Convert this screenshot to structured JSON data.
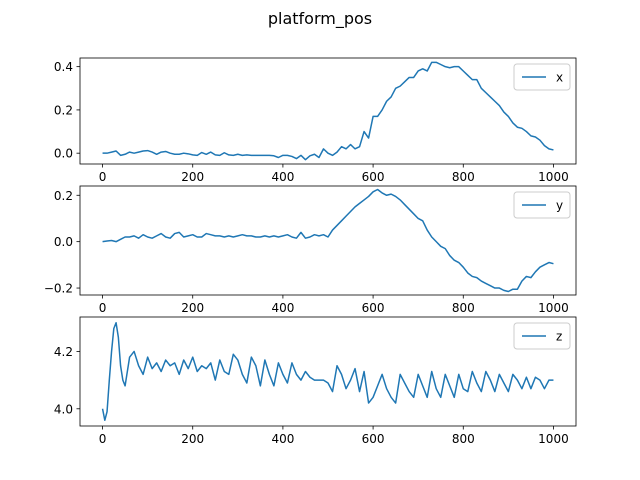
{
  "figure_title": "platform_pos",
  "colors": {
    "line": "#1f77b4",
    "axis": "#000000",
    "legend_border": "#cccccc"
  },
  "chart_data": [
    {
      "type": "line",
      "xlim": [
        -50,
        1050
      ],
      "ylim": [
        -0.05,
        0.44
      ],
      "xticks": [
        0,
        200,
        400,
        600,
        800,
        1000
      ],
      "xtick_labels": [
        "0",
        "200",
        "400",
        "600",
        "800",
        "1000"
      ],
      "yticks": [
        0.0,
        0.2,
        0.4
      ],
      "ytick_labels": [
        "0.0",
        "0.2",
        "0.4"
      ],
      "legend": "top-right",
      "series": [
        {
          "name": "x",
          "x": [
            0,
            10,
            20,
            30,
            40,
            50,
            60,
            70,
            80,
            90,
            100,
            110,
            120,
            130,
            140,
            150,
            160,
            170,
            180,
            190,
            200,
            210,
            220,
            230,
            240,
            250,
            260,
            270,
            280,
            290,
            300,
            310,
            320,
            330,
            340,
            350,
            360,
            370,
            380,
            390,
            400,
            410,
            420,
            430,
            440,
            450,
            460,
            470,
            480,
            490,
            500,
            510,
            520,
            530,
            540,
            550,
            560,
            570,
            580,
            590,
            600,
            610,
            620,
            630,
            640,
            650,
            660,
            670,
            680,
            690,
            700,
            710,
            720,
            730,
            740,
            750,
            760,
            770,
            780,
            790,
            800,
            810,
            820,
            830,
            840,
            850,
            860,
            870,
            880,
            890,
            900,
            910,
            920,
            930,
            940,
            950,
            960,
            970,
            980,
            990,
            1000
          ],
          "y": [
            0.0,
            0.0,
            0.005,
            0.01,
            -0.01,
            -0.005,
            0.005,
            0.0,
            0.005,
            0.01,
            0.012,
            0.005,
            -0.005,
            0.005,
            0.008,
            0.0,
            -0.005,
            -0.005,
            0.0,
            -0.003,
            -0.008,
            -0.01,
            0.003,
            -0.005,
            0.005,
            -0.008,
            -0.01,
            0.002,
            -0.008,
            -0.01,
            -0.005,
            -0.01,
            -0.008,
            -0.01,
            -0.01,
            -0.01,
            -0.01,
            -0.01,
            -0.012,
            -0.02,
            -0.01,
            -0.01,
            -0.015,
            -0.025,
            -0.01,
            -0.03,
            -0.012,
            -0.005,
            -0.02,
            0.02,
            0.0,
            -0.01,
            0.005,
            0.03,
            0.02,
            0.04,
            0.02,
            0.03,
            0.1,
            0.07,
            0.17,
            0.17,
            0.2,
            0.24,
            0.26,
            0.3,
            0.31,
            0.33,
            0.35,
            0.35,
            0.38,
            0.39,
            0.38,
            0.42,
            0.42,
            0.41,
            0.4,
            0.395,
            0.4,
            0.4,
            0.38,
            0.36,
            0.34,
            0.34,
            0.3,
            0.28,
            0.26,
            0.24,
            0.22,
            0.19,
            0.17,
            0.14,
            0.12,
            0.115,
            0.1,
            0.08,
            0.075,
            0.06,
            0.035,
            0.02,
            0.015
          ]
        }
      ]
    },
    {
      "type": "line",
      "xlim": [
        -50,
        1050
      ],
      "ylim": [
        -0.23,
        0.24
      ],
      "xticks": [
        0,
        200,
        400,
        600,
        800,
        1000
      ],
      "xtick_labels": [
        "0",
        "200",
        "400",
        "600",
        "800",
        "1000"
      ],
      "yticks": [
        -0.2,
        0.0,
        0.2
      ],
      "ytick_labels": [
        "−0.2",
        "0.0",
        "0.2"
      ],
      "legend": "top-right",
      "series": [
        {
          "name": "y",
          "x": [
            0,
            10,
            20,
            30,
            40,
            50,
            60,
            70,
            80,
            90,
            100,
            110,
            120,
            130,
            140,
            150,
            160,
            170,
            180,
            190,
            200,
            210,
            220,
            230,
            240,
            250,
            260,
            270,
            280,
            290,
            300,
            310,
            320,
            330,
            340,
            350,
            360,
            370,
            380,
            390,
            400,
            410,
            420,
            430,
            440,
            450,
            460,
            470,
            480,
            490,
            500,
            510,
            520,
            530,
            540,
            550,
            560,
            570,
            580,
            590,
            600,
            610,
            620,
            630,
            640,
            650,
            660,
            670,
            680,
            690,
            700,
            710,
            720,
            730,
            740,
            750,
            760,
            770,
            780,
            790,
            800,
            810,
            820,
            830,
            840,
            850,
            860,
            870,
            880,
            890,
            900,
            910,
            920,
            930,
            940,
            950,
            960,
            970,
            980,
            990,
            1000
          ],
          "y": [
            0.0,
            0.003,
            0.005,
            0.0,
            0.01,
            0.02,
            0.02,
            0.025,
            0.015,
            0.03,
            0.02,
            0.015,
            0.025,
            0.035,
            0.02,
            0.015,
            0.035,
            0.04,
            0.02,
            0.025,
            0.03,
            0.02,
            0.02,
            0.035,
            0.03,
            0.025,
            0.025,
            0.02,
            0.025,
            0.02,
            0.025,
            0.03,
            0.025,
            0.025,
            0.02,
            0.02,
            0.025,
            0.02,
            0.025,
            0.02,
            0.025,
            0.03,
            0.02,
            0.015,
            0.04,
            0.015,
            0.02,
            0.03,
            0.025,
            0.03,
            0.02,
            0.05,
            0.07,
            0.09,
            0.11,
            0.13,
            0.15,
            0.165,
            0.18,
            0.195,
            0.215,
            0.225,
            0.21,
            0.2,
            0.205,
            0.195,
            0.18,
            0.16,
            0.14,
            0.12,
            0.1,
            0.09,
            0.05,
            0.02,
            0.0,
            -0.02,
            -0.03,
            -0.06,
            -0.08,
            -0.09,
            -0.11,
            -0.135,
            -0.15,
            -0.155,
            -0.17,
            -0.18,
            -0.19,
            -0.2,
            -0.2,
            -0.21,
            -0.215,
            -0.205,
            -0.205,
            -0.17,
            -0.15,
            -0.155,
            -0.13,
            -0.11,
            -0.1,
            -0.09,
            -0.095
          ]
        }
      ]
    },
    {
      "type": "line",
      "xlim": [
        -50,
        1050
      ],
      "ylim": [
        3.94,
        4.32
      ],
      "xticks": [
        0,
        200,
        400,
        600,
        800,
        1000
      ],
      "xtick_labels": [
        "0",
        "200",
        "400",
        "600",
        "800",
        "1000"
      ],
      "yticks": [
        4.0,
        4.2
      ],
      "ytick_labels": [
        "4.0",
        "4.2"
      ],
      "legend": "top-right",
      "series": [
        {
          "name": "z",
          "x": [
            0,
            5,
            10,
            15,
            20,
            25,
            30,
            35,
            40,
            45,
            50,
            60,
            70,
            80,
            90,
            100,
            110,
            120,
            130,
            140,
            150,
            160,
            170,
            180,
            190,
            200,
            210,
            220,
            230,
            240,
            250,
            260,
            270,
            280,
            290,
            300,
            310,
            320,
            330,
            340,
            350,
            360,
            370,
            380,
            390,
            400,
            410,
            420,
            430,
            440,
            450,
            460,
            470,
            480,
            490,
            500,
            510,
            520,
            530,
            540,
            550,
            560,
            570,
            580,
            590,
            600,
            610,
            620,
            630,
            640,
            650,
            660,
            670,
            680,
            690,
            700,
            710,
            720,
            730,
            740,
            750,
            760,
            770,
            780,
            790,
            800,
            810,
            820,
            830,
            840,
            850,
            860,
            870,
            880,
            890,
            900,
            910,
            920,
            930,
            940,
            950,
            960,
            970,
            980,
            990,
            1000
          ],
          "y": [
            4.0,
            3.96,
            3.99,
            4.1,
            4.2,
            4.28,
            4.3,
            4.25,
            4.15,
            4.1,
            4.08,
            4.18,
            4.2,
            4.15,
            4.12,
            4.18,
            4.14,
            4.16,
            4.13,
            4.17,
            4.15,
            4.16,
            4.12,
            4.17,
            4.14,
            4.18,
            4.13,
            4.15,
            4.14,
            4.16,
            4.1,
            4.17,
            4.13,
            4.12,
            4.19,
            4.17,
            4.12,
            4.09,
            4.18,
            4.15,
            4.08,
            4.17,
            4.12,
            4.08,
            4.16,
            4.12,
            4.09,
            4.16,
            4.12,
            4.1,
            4.13,
            4.11,
            4.1,
            4.1,
            4.1,
            4.09,
            4.06,
            4.15,
            4.12,
            4.07,
            4.1,
            4.14,
            4.06,
            4.13,
            4.02,
            4.04,
            4.08,
            4.12,
            4.07,
            4.04,
            4.02,
            4.12,
            4.09,
            4.06,
            4.04,
            4.12,
            4.08,
            4.04,
            4.13,
            4.07,
            4.04,
            4.12,
            4.08,
            4.04,
            4.12,
            4.07,
            4.06,
            4.13,
            4.09,
            4.06,
            4.13,
            4.1,
            4.06,
            4.12,
            4.09,
            4.06,
            4.12,
            4.1,
            4.07,
            4.11,
            4.07,
            4.11,
            4.1,
            4.07,
            4.1,
            4.1
          ]
        }
      ]
    }
  ]
}
